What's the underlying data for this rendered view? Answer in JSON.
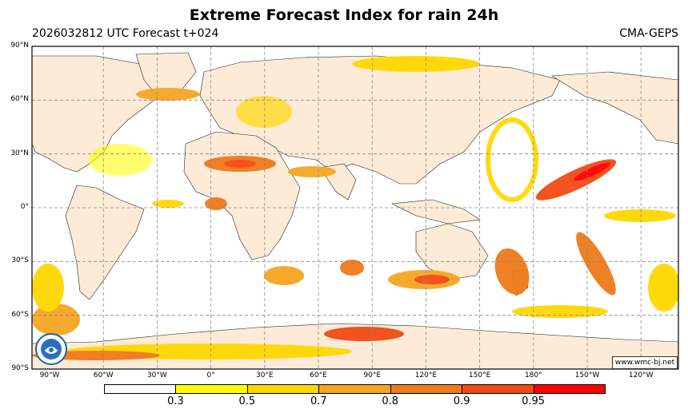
{
  "title": "Extreme Forecast Index for rain 24h",
  "subtitle_left": "2026032812 UTC Forecast t+024",
  "subtitle_right": "CMA-GEPS",
  "credit": "www.wmc-bj.net",
  "lat_labels": [
    "90°N",
    "60°N",
    "30°N",
    "0°",
    "30°S",
    "60°S",
    "90°S"
  ],
  "lon_labels": [
    "90°W",
    "60°W",
    "30°W",
    "0°",
    "30°E",
    "60°E",
    "90°E",
    "120°E",
    "150°E",
    "180°",
    "150°W",
    "120°W"
  ],
  "colorbar": {
    "ticks": [
      "0.3",
      "0.5",
      "0.7",
      "0.8",
      "0.9",
      "0.95"
    ],
    "colors": [
      "#ffffff",
      "#ffff00",
      "#ffd700",
      "#f5a623",
      "#f07a1a",
      "#f24a14",
      "#ff0000"
    ]
  },
  "colors": {
    "land": "#fdebd8",
    "ocean": "#ffffff",
    "grid": "#888888"
  }
}
